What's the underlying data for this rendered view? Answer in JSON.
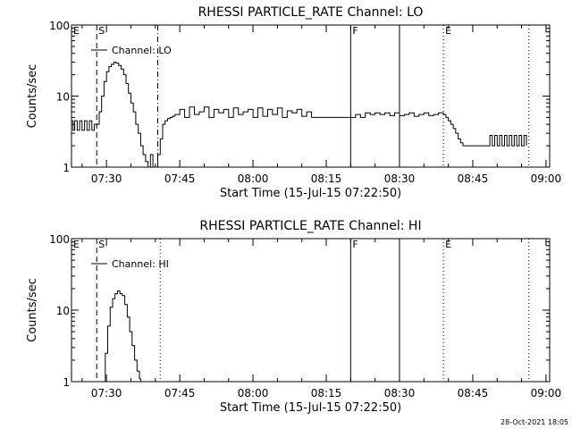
{
  "footer_date": "28-Oct-2021 18:05",
  "chart_data": [
    {
      "type": "line",
      "title": "RHESSI PARTICLE_RATE Channel: LO",
      "xlabel": "Start Time (15-Jul-15 07:22:50)",
      "ylabel": "Counts/sec",
      "legend": "Channel: LO",
      "legend_position": "top-left",
      "yscale": "log",
      "ylim": [
        1,
        100
      ],
      "xlim": [
        "07:22:50",
        "09:00:45"
      ],
      "x_ticks": [
        "07:30",
        "07:45",
        "08:00",
        "08:15",
        "08:30",
        "08:45",
        "09:00"
      ],
      "y_ticks": [
        "1",
        "10",
        "100"
      ],
      "markers": [
        {
          "label": "E",
          "time": "07:22:50",
          "style": "dashed"
        },
        {
          "label": "S",
          "time": "07:28:00",
          "style": "dashed"
        },
        {
          "label": "",
          "time": "07:40:30",
          "style": "dashdot"
        },
        {
          "label": "F",
          "time": "08:20:00",
          "style": "solid"
        },
        {
          "label": "",
          "time": "08:30:00",
          "style": "solid"
        },
        {
          "label": "E",
          "time": "08:39:00",
          "style": "dotted"
        },
        {
          "label": "",
          "time": "08:56:30",
          "style": "dotted"
        }
      ],
      "series": [
        {
          "x": [
            "07:22:50",
            "07:23:10",
            "07:23:30",
            "07:24:00",
            "07:24:30",
            "07:25:00",
            "07:25:30",
            "07:26:00",
            "07:26:30",
            "07:27:00",
            "07:27:30",
            "07:28:00",
            "07:28:30",
            "07:29:00",
            "07:29:30",
            "07:30:00",
            "07:30:30",
            "07:31:00",
            "07:31:30",
            "07:32:00",
            "07:32:30",
            "07:33:00",
            "07:33:30",
            "07:34:00",
            "07:34:30",
            "07:35:00",
            "07:35:30",
            "07:36:00",
            "07:36:30",
            "07:37:00",
            "07:37:30",
            "07:38:00",
            "07:38:30",
            "07:39:00",
            "07:39:30",
            "07:40:00",
            "07:40:30",
            "07:41:00",
            "07:41:30",
            "07:42:00",
            "07:42:30",
            "07:43:00",
            "07:43:30",
            "07:44:00",
            "07:45:00",
            "07:46:00",
            "07:47:00",
            "07:48:00",
            "07:49:00",
            "07:50:00",
            "07:51:00",
            "07:52:00",
            "07:53:00",
            "07:54:00",
            "07:55:00",
            "07:56:00",
            "07:57:00",
            "07:58:00",
            "07:59:00",
            "08:00:00",
            "08:01:00",
            "08:02:00",
            "08:03:00",
            "08:04:00",
            "08:05:00",
            "08:06:00",
            "08:07:00",
            "08:08:00",
            "08:09:00",
            "08:10:00",
            "08:11:00",
            "08:12:00",
            "08:13:00",
            "08:14:00",
            "08:15:00",
            "08:16:00",
            "08:17:00",
            "08:18:00",
            "08:19:00",
            "08:20:00",
            "08:21:00",
            "08:22:00",
            "08:23:00",
            "08:24:00",
            "08:25:00",
            "08:26:00",
            "08:27:00",
            "08:28:00",
            "08:29:00",
            "08:30:00",
            "08:31:00",
            "08:32:00",
            "08:33:00",
            "08:34:00",
            "08:35:00",
            "08:36:00",
            "08:37:00",
            "08:38:00",
            "08:39:00",
            "08:39:30",
            "08:40:00",
            "08:40:30",
            "08:41:00",
            "08:41:30",
            "08:42:00",
            "08:42:30",
            "08:43:00",
            "08:44:00",
            "08:45:00",
            "08:46:00",
            "08:47:00",
            "08:48:00",
            "08:48:30",
            "08:49:00",
            "08:49:30",
            "08:50:00",
            "08:50:30",
            "08:51:00",
            "08:51:30",
            "08:52:00",
            "08:52:30",
            "08:53:00",
            "08:53:30",
            "08:54:00",
            "08:54:30",
            "08:55:00",
            "08:55:30",
            "08:56:00"
          ],
          "y": [
            4.5,
            3.3,
            4.5,
            3.3,
            4.5,
            3.3,
            4.5,
            3.3,
            4.5,
            3.3,
            4,
            4,
            6,
            10,
            16,
            22,
            26,
            28,
            30,
            29,
            27,
            24,
            20,
            15,
            11,
            8,
            6,
            4,
            3,
            2,
            1.5,
            1.2,
            1,
            1.5,
            1,
            1,
            1.5,
            2.5,
            4,
            4.5,
            4.8,
            5,
            5.2,
            5.5,
            6.5,
            5,
            7,
            5.5,
            6,
            7,
            5,
            6.5,
            5.8,
            6.5,
            5,
            6.8,
            5.5,
            6,
            6.5,
            5,
            6.8,
            5.2,
            6.5,
            5.5,
            6.8,
            5,
            6.2,
            5.8,
            6.5,
            5.2,
            6,
            5,
            5,
            5,
            5,
            5,
            5,
            5,
            5,
            5,
            5.5,
            5,
            5.8,
            5.5,
            5.8,
            5.5,
            5.8,
            5.3,
            5.8,
            5.3,
            5.5,
            5.8,
            5.2,
            5.5,
            5.8,
            5.3,
            5.5,
            5.8,
            5.5,
            5,
            4.5,
            4,
            3.5,
            3,
            2.5,
            2.2,
            2,
            2,
            2,
            2,
            2,
            2,
            2.8,
            2,
            2.8,
            2,
            2.8,
            2,
            2.8,
            2,
            2.8,
            2,
            2.8,
            2,
            2.8,
            2,
            2.8,
            2
          ]
        }
      ]
    },
    {
      "type": "line",
      "title": "RHESSI PARTICLE_RATE Channel: HI",
      "xlabel": "Start Time (15-Jul-15 07:22:50)",
      "ylabel": "Counts/sec",
      "legend": "Channel: HI",
      "legend_position": "top-left",
      "yscale": "log",
      "ylim": [
        1,
        100
      ],
      "xlim": [
        "07:22:50",
        "09:00:45"
      ],
      "x_ticks": [
        "07:30",
        "07:45",
        "08:00",
        "08:15",
        "08:30",
        "08:45",
        "09:00"
      ],
      "y_ticks": [
        "1",
        "10",
        "100"
      ],
      "markers": [
        {
          "label": "E",
          "time": "07:22:50",
          "style": "dashed"
        },
        {
          "label": "S",
          "time": "07:28:00",
          "style": "dashed"
        },
        {
          "label": "",
          "time": "07:41:00",
          "style": "dotted"
        },
        {
          "label": "F",
          "time": "08:20:00",
          "style": "solid"
        },
        {
          "label": "",
          "time": "08:30:00",
          "style": "solid"
        },
        {
          "label": "E",
          "time": "08:39:00",
          "style": "dotted"
        },
        {
          "label": "",
          "time": "08:56:30",
          "style": "dotted"
        }
      ],
      "series": [
        {
          "x": [
            "07:29:15",
            "07:29:45",
            "07:30:15",
            "07:30:45",
            "07:31:15",
            "07:31:45",
            "07:32:15",
            "07:32:45",
            "07:33:15",
            "07:33:45",
            "07:34:15",
            "07:34:45",
            "07:35:15",
            "07:35:45",
            "07:36:15",
            "07:36:45",
            "07:37:00"
          ],
          "y": [
            1,
            2.5,
            6,
            11,
            14.5,
            17,
            18.5,
            17,
            16,
            12,
            8,
            5,
            3.2,
            2,
            1.4,
            1.1,
            1
          ]
        }
      ]
    }
  ]
}
